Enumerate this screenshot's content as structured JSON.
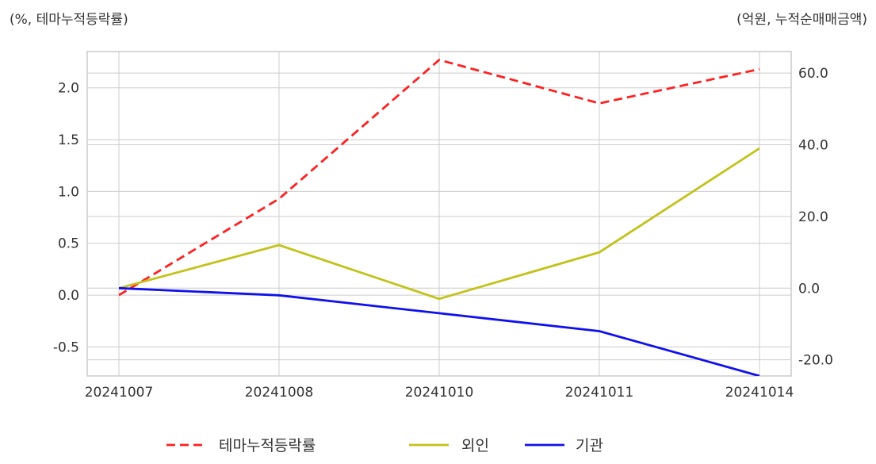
{
  "chart_data": {
    "type": "line",
    "categories": [
      "20241007",
      "20241008",
      "20241010",
      "20241011",
      "20241014"
    ],
    "left_axis": {
      "unit_label": "(%, 테마누적등락률)",
      "ylim": [
        -0.78,
        2.35
      ],
      "ticks": [
        -0.5,
        0.0,
        0.5,
        1.0,
        1.5,
        2.0
      ],
      "tick_labels": [
        "-0.5",
        "0.0",
        "0.5",
        "1.0",
        "1.5",
        "2.0"
      ]
    },
    "right_axis": {
      "unit_label": "(억원, 누적순매매금액)",
      "ylim": [
        -24.5,
        66.0
      ],
      "ticks": [
        -20,
        0,
        20,
        40,
        60
      ],
      "tick_labels": [
        "-20.0",
        "0.0",
        "20.0",
        "40.0",
        "60.0"
      ]
    },
    "series": [
      {
        "name": "테마누적등락률",
        "axis": "left",
        "values": [
          0.0,
          0.93,
          2.27,
          1.85,
          2.18
        ],
        "color": "#ff2020",
        "dashed": true
      },
      {
        "name": "외인",
        "axis": "right",
        "values": [
          0.0,
          12.0,
          -3.0,
          10.0,
          39.0
        ],
        "color": "#c2c21a",
        "dashed": false
      },
      {
        "name": "기관",
        "axis": "right",
        "values": [
          0.0,
          -2.0,
          -7.0,
          -12.0,
          -24.5
        ],
        "color": "#1010ee",
        "dashed": false
      }
    ],
    "grid": true,
    "legend_position": "bottom"
  }
}
